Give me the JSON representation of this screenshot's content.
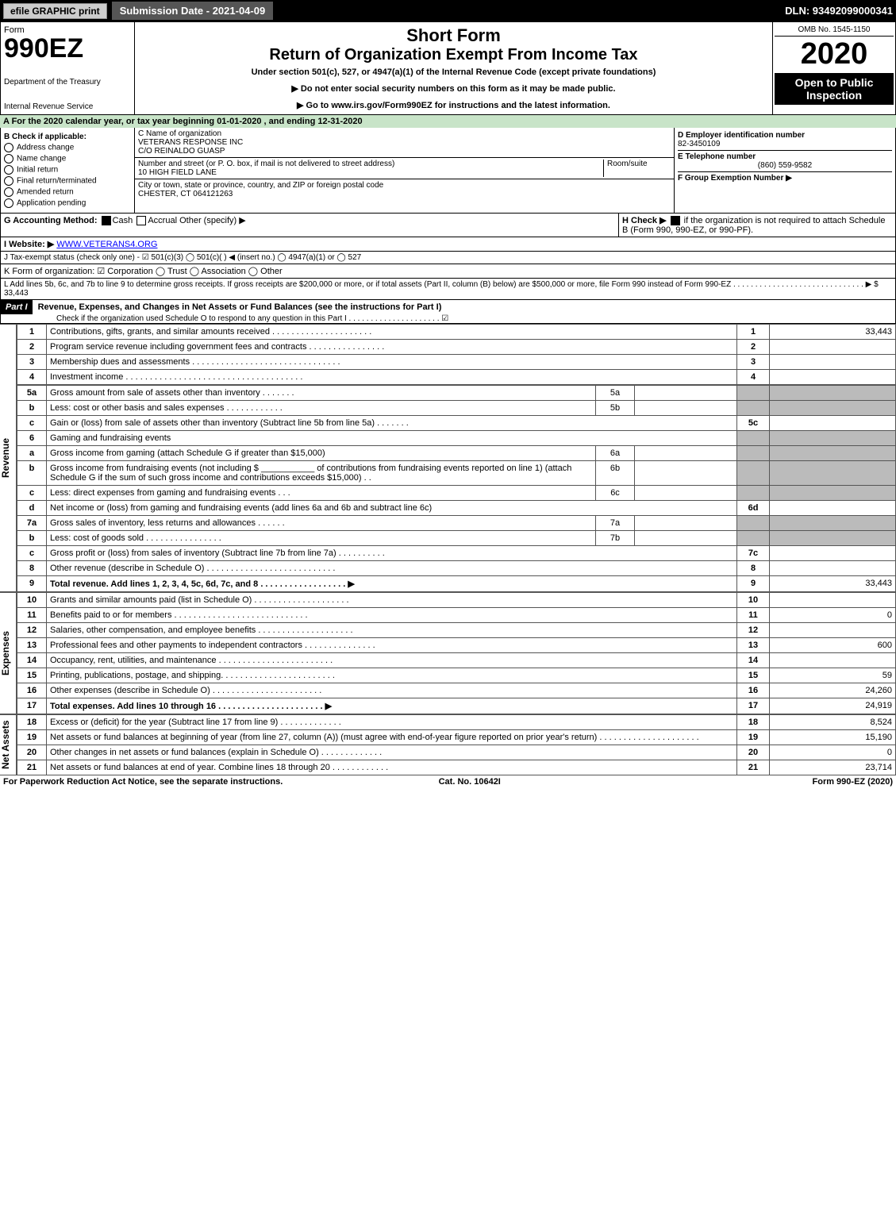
{
  "topbar": {
    "efile": "efile GRAPHIC print",
    "subdate_label": "Submission Date - 2021-04-09",
    "dln": "DLN: 93492099000341"
  },
  "hdr": {
    "form": "Form",
    "num": "990EZ",
    "dept": "Department of the Treasury",
    "irs": "Internal Revenue Service",
    "short": "Short Form",
    "title": "Return of Organization Exempt From Income Tax",
    "sub": "Under section 501(c), 527, or 4947(a)(1) of the Internal Revenue Code (except private foundations)",
    "note1": "▶ Do not enter social security numbers on this form as it may be made public.",
    "note2": "▶ Go to www.irs.gov/Form990EZ for instructions and the latest information.",
    "omb": "OMB No. 1545-1150",
    "year": "2020",
    "open": "Open to Public Inspection"
  },
  "A": {
    "text": "A For the 2020 calendar year, or tax year beginning 01-01-2020 , and ending 12-31-2020"
  },
  "B": {
    "label": "B Check if applicable:",
    "opts": [
      "Address change",
      "Name change",
      "Initial return",
      "Final return/terminated",
      "Amended return",
      "Application pending"
    ]
  },
  "C": {
    "name_label": "C Name of organization",
    "name": "VETERANS RESPONSE INC",
    "care": "C/O REINALDO GUASP",
    "addr_label": "Number and street (or P. O. box, if mail is not delivered to street address)",
    "room": "Room/suite",
    "addr": "10 HIGH FIELD LANE",
    "city_label": "City or town, state or province, country, and ZIP or foreign postal code",
    "city": "CHESTER, CT  064121263"
  },
  "D": {
    "label": "D Employer identification number",
    "val": "82-3450109"
  },
  "E": {
    "label": "E Telephone number",
    "val": "(860) 559-9582"
  },
  "F": {
    "label": "F Group Exemption Number ▶"
  },
  "G": {
    "label": "G Accounting Method:",
    "cash": "Cash",
    "accrual": "Accrual",
    "other": "Other (specify) ▶"
  },
  "H": {
    "label": "H Check ▶",
    "text": "if the organization is not required to attach Schedule B (Form 990, 990-EZ, or 990-PF)."
  },
  "I": {
    "label": "I Website: ▶",
    "val": "WWW.VETERANS4.ORG"
  },
  "J": {
    "text": "J Tax-exempt status (check only one) - ☑ 501(c)(3)  ◯ 501(c)(  ) ◀ (insert no.)  ◯ 4947(a)(1) or  ◯ 527"
  },
  "K": {
    "text": "K Form of organization:   ☑ Corporation   ◯ Trust   ◯ Association   ◯ Other"
  },
  "L": {
    "text": "L Add lines 5b, 6c, and 7b to line 9 to determine gross receipts. If gross receipts are $200,000 or more, or if total assets (Part II, column (B) below) are $500,000 or more, file Form 990 instead of Form 990-EZ . . . . . . . . . . . . . . . . . . . . . . . . . . . . . .  ▶ $ 33,443"
  },
  "part1": {
    "hdr": "Part I",
    "title": "Revenue, Expenses, and Changes in Net Assets or Fund Balances (see the instructions for Part I)",
    "check": "Check if the organization used Schedule O to respond to any question in this Part I . . . . . . . . . . . . . . . . . . . . .  ☑",
    "revenue_label": "Revenue",
    "expenses_label": "Expenses",
    "netassets_label": "Net Assets",
    "rows": [
      {
        "n": "1",
        "d": "Contributions, gifts, grants, and similar amounts received . . . . . . . . . . . . . . . . . . . . .",
        "ln": "1",
        "amt": "33,443"
      },
      {
        "n": "2",
        "d": "Program service revenue including government fees and contracts . . . . . . . . . . . . . . . .",
        "ln": "2",
        "amt": ""
      },
      {
        "n": "3",
        "d": "Membership dues and assessments . . . . . . . . . . . . . . . . . . . . . . . . . . . . . . .",
        "ln": "3",
        "amt": ""
      },
      {
        "n": "4",
        "d": "Investment income . . . . . . . . . . . . . . . . . . . . . . . . . . . . . . . . . . . . .",
        "ln": "4",
        "amt": ""
      }
    ],
    "r5a": {
      "n": "5a",
      "d": "Gross amount from sale of assets other than inventory . . . . . . .",
      "sub": "5a"
    },
    "r5b": {
      "n": "b",
      "d": "Less: cost or other basis and sales expenses . . . . . . . . . . . .",
      "sub": "5b"
    },
    "r5c": {
      "n": "c",
      "d": "Gain or (loss) from sale of assets other than inventory (Subtract line 5b from line 5a) . . . . . . .",
      "ln": "5c"
    },
    "r6": {
      "n": "6",
      "d": "Gaming and fundraising events"
    },
    "r6a": {
      "n": "a",
      "d": "Gross income from gaming (attach Schedule G if greater than $15,000)",
      "sub": "6a"
    },
    "r6b": {
      "n": "b",
      "d": "Gross income from fundraising events (not including $ ___________ of contributions from fundraising events reported on line 1) (attach Schedule G if the sum of such gross income and contributions exceeds $15,000)   . .",
      "sub": "6b"
    },
    "r6c": {
      "n": "c",
      "d": "Less: direct expenses from gaming and fundraising events     . . .",
      "sub": "6c"
    },
    "r6d": {
      "n": "d",
      "d": "Net income or (loss) from gaming and fundraising events (add lines 6a and 6b and subtract line 6c)",
      "ln": "6d"
    },
    "r7a": {
      "n": "7a",
      "d": "Gross sales of inventory, less returns and allowances . . . . . .",
      "sub": "7a"
    },
    "r7b": {
      "n": "b",
      "d": "Less: cost of goods sold      . . . . . . . . . . . . . . . .",
      "sub": "7b"
    },
    "r7c": {
      "n": "c",
      "d": "Gross profit or (loss) from sales of inventory (Subtract line 7b from line 7a) . . . . . . . . . .",
      "ln": "7c"
    },
    "r8": {
      "n": "8",
      "d": "Other revenue (describe in Schedule O) . . . . . . . . . . . . . . . . . . . . . . . . . . .",
      "ln": "8"
    },
    "r9": {
      "n": "9",
      "d": "Total revenue. Add lines 1, 2, 3, 4, 5c, 6d, 7c, and 8  . . . . . . . . . . . . . . . . . .  ▶",
      "ln": "9",
      "amt": "33,443",
      "bold": true
    },
    "exp": [
      {
        "n": "10",
        "d": "Grants and similar amounts paid (list in Schedule O) . . . . . . . . . . . . . . . . . . . .",
        "ln": "10",
        "amt": ""
      },
      {
        "n": "11",
        "d": "Benefits paid to or for members    . . . . . . . . . . . . . . . . . . . . . . . . . . . .",
        "ln": "11",
        "amt": "0"
      },
      {
        "n": "12",
        "d": "Salaries, other compensation, and employee benefits . . . . . . . . . . . . . . . . . . . .",
        "ln": "12",
        "amt": ""
      },
      {
        "n": "13",
        "d": "Professional fees and other payments to independent contractors . . . . . . . . . . . . . . .",
        "ln": "13",
        "amt": "600"
      },
      {
        "n": "14",
        "d": "Occupancy, rent, utilities, and maintenance . . . . . . . . . . . . . . . . . . . . . . . .",
        "ln": "14",
        "amt": ""
      },
      {
        "n": "15",
        "d": "Printing, publications, postage, and shipping. . . . . . . . . . . . . . . . . . . . . . . .",
        "ln": "15",
        "amt": "59"
      },
      {
        "n": "16",
        "d": "Other expenses (describe in Schedule O)     . . . . . . . . . . . . . . . . . . . . . . .",
        "ln": "16",
        "amt": "24,260"
      },
      {
        "n": "17",
        "d": "Total expenses. Add lines 10 through 16    . . . . . . . . . . . . . . . . . . . . . .  ▶",
        "ln": "17",
        "amt": "24,919",
        "bold": true
      }
    ],
    "na": [
      {
        "n": "18",
        "d": "Excess or (deficit) for the year (Subtract line 17 from line 9)      . . . . . . . . . . . . .",
        "ln": "18",
        "amt": "8,524"
      },
      {
        "n": "19",
        "d": "Net assets or fund balances at beginning of year (from line 27, column (A)) (must agree with end-of-year figure reported on prior year's return) . . . . . . . . . . . . . . . . . . . . .",
        "ln": "19",
        "amt": "15,190"
      },
      {
        "n": "20",
        "d": "Other changes in net assets or fund balances (explain in Schedule O) . . . . . . . . . . . . .",
        "ln": "20",
        "amt": "0"
      },
      {
        "n": "21",
        "d": "Net assets or fund balances at end of year. Combine lines 18 through 20 . . . . . . . . . . . .",
        "ln": "21",
        "amt": "23,714"
      }
    ]
  },
  "footer": {
    "left": "For Paperwork Reduction Act Notice, see the separate instructions.",
    "mid": "Cat. No. 10642I",
    "right": "Form 990-EZ (2020)"
  }
}
